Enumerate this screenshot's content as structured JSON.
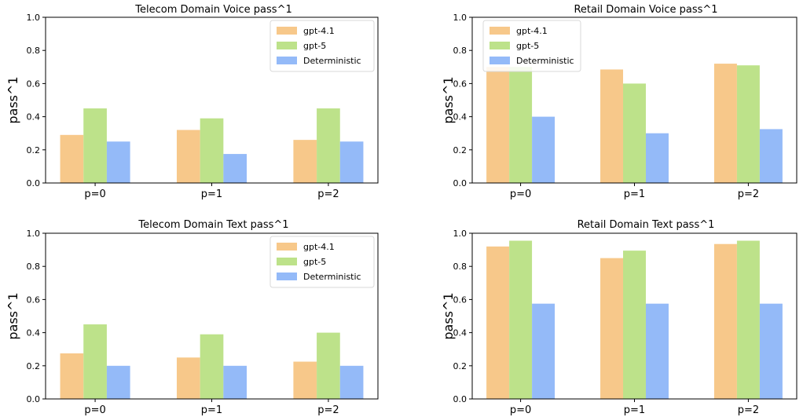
{
  "figure": {
    "background": "#ffffff"
  },
  "colors": {
    "gpt-4.1": "#f7c88a",
    "gpt-5": "#bde28a",
    "Deterministic": "#94baf8",
    "axis": "#000000",
    "legend_border": "#d9d9d9"
  },
  "chart_data": [
    {
      "type": "bar",
      "title": "Telecom Domain Voice pass^1",
      "xlabel": "",
      "ylabel": "pass^1",
      "ylim": [
        0,
        1.0
      ],
      "yticks": [
        "0.0",
        "0.2",
        "0.4",
        "0.6",
        "0.8",
        "1.0"
      ],
      "categories": [
        "p=0",
        "p=1",
        "p=2"
      ],
      "grid": false,
      "legend": {
        "placement": "upper-right"
      },
      "series": [
        {
          "name": "gpt-4.1",
          "values": [
            0.29,
            0.32,
            0.26
          ]
        },
        {
          "name": "gpt-5",
          "values": [
            0.45,
            0.39,
            0.45
          ]
        },
        {
          "name": "Deterministic",
          "values": [
            0.25,
            0.175,
            0.25
          ]
        }
      ]
    },
    {
      "type": "bar",
      "title": "Retail Domain Voice pass^1",
      "xlabel": "",
      "ylabel": "pass^1",
      "ylim": [
        0,
        1.0
      ],
      "yticks": [
        "0.0",
        "0.2",
        "0.4",
        "0.6",
        "0.8",
        "1.0"
      ],
      "categories": [
        "p=0",
        "p=1",
        "p=2"
      ],
      "grid": false,
      "legend": {
        "placement": "upper-left"
      },
      "series": [
        {
          "name": "gpt-4.1",
          "values": [
            0.7,
            0.685,
            0.72
          ]
        },
        {
          "name": "gpt-5",
          "values": [
            0.7,
            0.6,
            0.71
          ]
        },
        {
          "name": "Deterministic",
          "values": [
            0.4,
            0.3,
            0.325
          ]
        }
      ]
    },
    {
      "type": "bar",
      "title": "Telecom Domain Text pass^1",
      "xlabel": "",
      "ylabel": "pass^1",
      "ylim": [
        0,
        1.0
      ],
      "yticks": [
        "0.0",
        "0.2",
        "0.4",
        "0.6",
        "0.8",
        "1.0"
      ],
      "categories": [
        "p=0",
        "p=1",
        "p=2"
      ],
      "grid": false,
      "legend": {
        "placement": "upper-right"
      },
      "series": [
        {
          "name": "gpt-4.1",
          "values": [
            0.275,
            0.25,
            0.225
          ]
        },
        {
          "name": "gpt-5",
          "values": [
            0.45,
            0.39,
            0.4
          ]
        },
        {
          "name": "Deterministic",
          "values": [
            0.2,
            0.2,
            0.2
          ]
        }
      ]
    },
    {
      "type": "bar",
      "title": "Retail Domain Text pass^1",
      "xlabel": "",
      "ylabel": "pass^1",
      "ylim": [
        0,
        1.0
      ],
      "yticks": [
        "0.0",
        "0.2",
        "0.4",
        "0.6",
        "0.8",
        "1.0"
      ],
      "categories": [
        "p=0",
        "p=1",
        "p=2"
      ],
      "grid": false,
      "legend": {
        "placement": "none"
      },
      "series": [
        {
          "name": "gpt-4.1",
          "values": [
            0.92,
            0.85,
            0.935
          ]
        },
        {
          "name": "gpt-5",
          "values": [
            0.955,
            0.895,
            0.955
          ]
        },
        {
          "name": "Deterministic",
          "values": [
            0.575,
            0.575,
            0.575
          ]
        }
      ]
    }
  ]
}
